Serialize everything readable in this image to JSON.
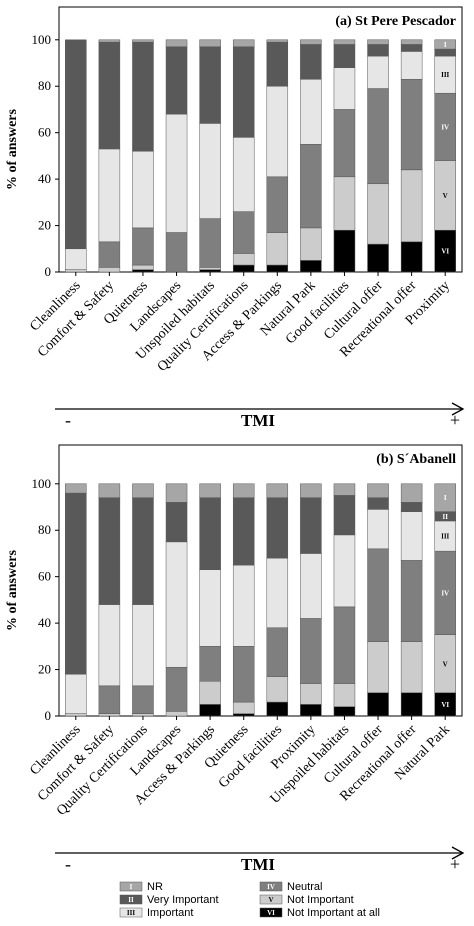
{
  "legend": {
    "items": [
      {
        "key": "NR",
        "label": "NR",
        "marker": "I"
      },
      {
        "key": "VI",
        "label": "Very Important",
        "marker": "II"
      },
      {
        "key": "I",
        "label": "Important",
        "marker": "III"
      },
      {
        "key": "N",
        "label": "Neutral",
        "marker": "IV"
      },
      {
        "key": "NI",
        "label": "Not Important",
        "marker": "V"
      },
      {
        "key": "NIA",
        "label": "Not Important at all",
        "marker": "VI"
      }
    ]
  },
  "colors": {
    "NR": "#a6a6a6",
    "VI": "#595959",
    "I": "#e6e6e6",
    "N": "#7f7f7f",
    "NI": "#cccccc",
    "NIA": "#000000"
  },
  "chart_data": [
    {
      "type": "bar",
      "stacked": true,
      "title": "(a) St Pere Pescador",
      "ylabel": "% of answers",
      "xlabel": "TMI",
      "x_arrow_left": "-",
      "x_arrow_right": "+",
      "ylim": [
        0,
        110
      ],
      "yticks": [
        "0",
        "20",
        "40",
        "60",
        "80",
        "100"
      ],
      "stack_order": [
        "NIA",
        "NI",
        "N",
        "I",
        "VI",
        "NR"
      ],
      "categories": [
        "Cleanliness",
        "Comfort & Safety",
        "Quietness",
        "Landscapes",
        "Unspoiled habitats",
        "Quality Certifications",
        "Access & Parkings",
        "Natural Park",
        "Good facilities",
        "Cultural offer",
        "Recreational offer",
        "Proximity"
      ],
      "series": [
        {
          "name": "Not Important at all",
          "key": "NIA",
          "values": [
            0,
            0,
            1,
            0,
            1,
            3,
            3,
            5,
            18,
            12,
            13,
            18
          ]
        },
        {
          "name": "Not Important",
          "key": "NI",
          "values": [
            1,
            2,
            2,
            0,
            1,
            5,
            14,
            14,
            23,
            26,
            31,
            30
          ]
        },
        {
          "name": "Neutral",
          "key": "N",
          "values": [
            0,
            11,
            16,
            17,
            21,
            18,
            24,
            36,
            29,
            41,
            39,
            29
          ]
        },
        {
          "name": "Important",
          "key": "I",
          "values": [
            9,
            40,
            33,
            51,
            41,
            32,
            39,
            28,
            18,
            14,
            12,
            16
          ]
        },
        {
          "name": "Very Important",
          "key": "VI",
          "values": [
            90,
            46,
            47,
            29,
            33,
            39,
            19,
            15,
            10,
            5,
            3,
            3
          ]
        },
        {
          "name": "NR",
          "key": "NR",
          "values": [
            0,
            1,
            1,
            3,
            3,
            3,
            1,
            2,
            2,
            2,
            2,
            4
          ]
        }
      ]
    },
    {
      "type": "bar",
      "stacked": true,
      "title": "(b) S´Abanell",
      "ylabel": "% of answers",
      "xlabel": "TMI",
      "x_arrow_left": "-",
      "x_arrow_right": "+",
      "ylim": [
        0,
        110
      ],
      "yticks": [
        "0",
        "20",
        "40",
        "60",
        "80",
        "100"
      ],
      "stack_order": [
        "NIA",
        "NI",
        "N",
        "I",
        "VI",
        "NR"
      ],
      "categories": [
        "Cleanliness",
        "Comfort & Safety",
        "Quality Certifications",
        "Landscapes",
        "Access & Parkings",
        "Quietness",
        "Good facilities",
        "Proximity",
        "Unspoiled habitats",
        "Cultural offer",
        "Recreational offer",
        "Natural Park"
      ],
      "series": [
        {
          "name": "Not Important at all",
          "key": "NIA",
          "values": [
            0,
            0,
            0,
            0,
            5,
            1,
            6,
            5,
            4,
            10,
            10,
            10
          ]
        },
        {
          "name": "Not Important",
          "key": "NI",
          "values": [
            1,
            1,
            1,
            2,
            10,
            5,
            11,
            9,
            10,
            22,
            22,
            25
          ]
        },
        {
          "name": "Neutral",
          "key": "N",
          "values": [
            0,
            12,
            12,
            19,
            15,
            24,
            21,
            28,
            33,
            40,
            35,
            36
          ]
        },
        {
          "name": "Important",
          "key": "I",
          "values": [
            17,
            35,
            35,
            54,
            33,
            35,
            30,
            28,
            31,
            17,
            21,
            13
          ]
        },
        {
          "name": "Very Important",
          "key": "VI",
          "values": [
            78,
            46,
            46,
            17,
            31,
            29,
            26,
            24,
            17,
            5,
            4,
            4
          ]
        },
        {
          "name": "NR",
          "key": "NR",
          "values": [
            4,
            6,
            6,
            8,
            6,
            6,
            6,
            6,
            5,
            6,
            8,
            12
          ]
        }
      ]
    }
  ]
}
